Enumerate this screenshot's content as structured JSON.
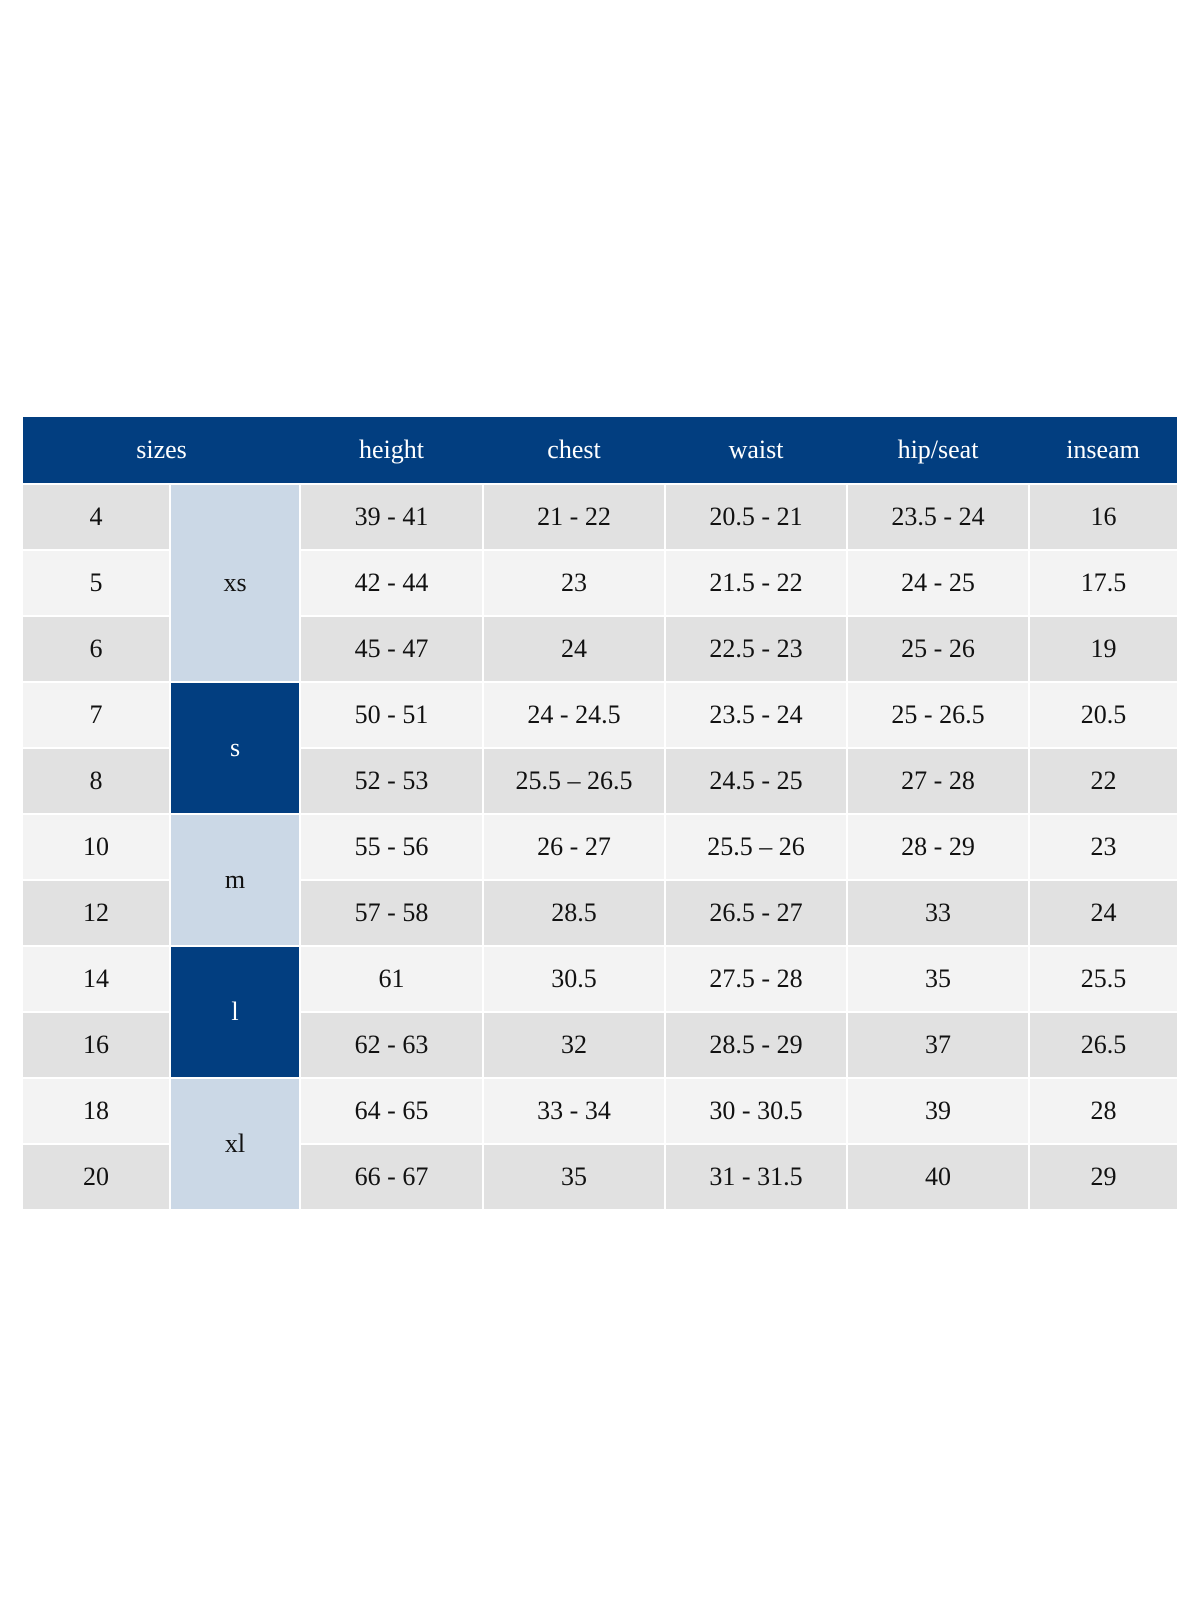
{
  "table": {
    "columns": [
      "sizes",
      "height",
      "chest",
      "waist",
      "hip/seat",
      "inseam"
    ],
    "groups": [
      {
        "label": "xs",
        "rows": [
          [
            "4",
            "39 - 41",
            "21 - 22",
            "20.5 - 21",
            "23.5 - 24",
            "16"
          ],
          [
            "5",
            "42 - 44",
            "23",
            "21.5 - 22",
            "24 - 25",
            "17.5"
          ],
          [
            "6",
            "45 - 47",
            "24",
            "22.5 - 23",
            "25 - 26",
            "19"
          ]
        ]
      },
      {
        "label": "s",
        "rows": [
          [
            "7",
            "50 - 51",
            "24 - 24.5",
            "23.5 - 24",
            "25 - 26.5",
            "20.5"
          ],
          [
            "8",
            "52 - 53",
            "25.5 – 26.5",
            "24.5 - 25",
            "27 - 28",
            "22"
          ]
        ]
      },
      {
        "label": "m",
        "rows": [
          [
            "10",
            "55 - 56",
            "26 - 27",
            "25.5 – 26",
            "28 - 29",
            "23"
          ],
          [
            "12",
            "57 - 58",
            "28.5",
            "26.5 - 27",
            "33",
            "24"
          ]
        ]
      },
      {
        "label": "l",
        "rows": [
          [
            "14",
            "61",
            "30.5",
            "27.5 - 28",
            "35",
            "25.5"
          ],
          [
            "16",
            "62 - 63",
            "32",
            "28.5 - 29",
            "37",
            "26.5"
          ]
        ]
      },
      {
        "label": "xl",
        "rows": [
          [
            "18",
            "64 - 65",
            "33 - 34",
            "30 - 30.5",
            "39",
            "28"
          ],
          [
            "20",
            "66 - 67",
            "35",
            "31 - 31.5",
            "40",
            "29"
          ]
        ]
      }
    ]
  }
}
